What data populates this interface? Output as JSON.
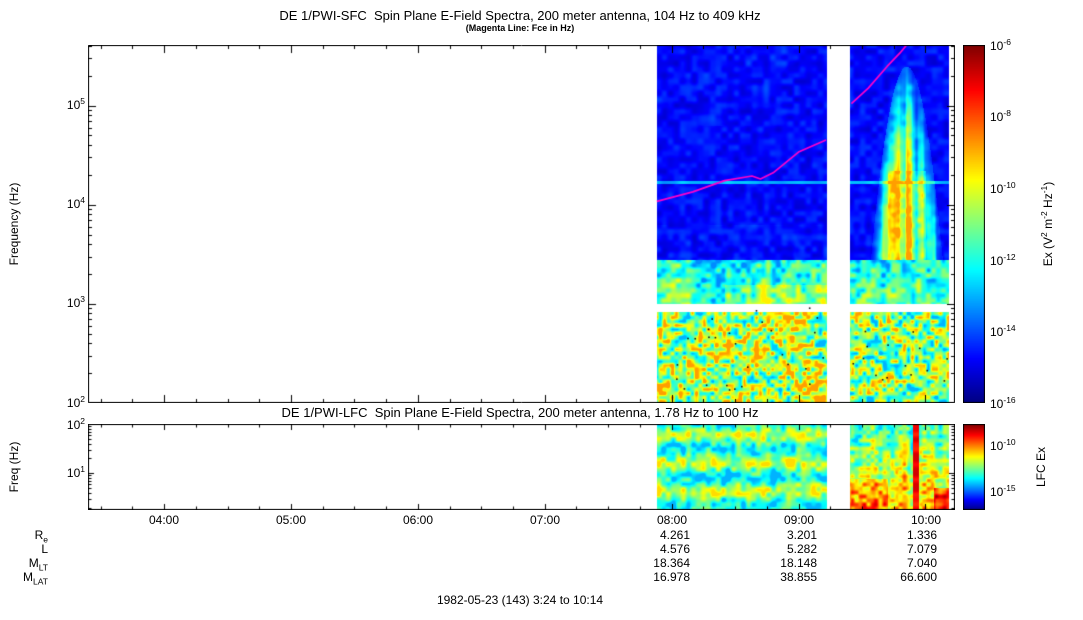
{
  "titles": {
    "sfc_title": "DE 1/PWI-SFC  Spin Plane E-Field Spectra, 200 meter antenna, 104 Hz to 409 kHz",
    "sfc_subtitle": "(Magenta Line: Fce in Hz)",
    "lfc_title": "DE 1/PWI-LFC  Spin Plane E-Field Spectra, 200 meter antenna, 1.78 Hz to 100 Hz"
  },
  "sfc_axis": {
    "ylabel": "Frequency (Hz)",
    "yticks": [
      {
        "base": "10",
        "exp": "5"
      },
      {
        "base": "10",
        "exp": "4"
      },
      {
        "base": "10",
        "exp": "3"
      },
      {
        "base": "10",
        "exp": "2"
      }
    ],
    "cbar_ticks": [
      {
        "base": "10",
        "exp": "-6"
      },
      {
        "base": "10",
        "exp": "-8"
      },
      {
        "base": "10",
        "exp": "-10"
      },
      {
        "base": "10",
        "exp": "-12"
      },
      {
        "base": "10",
        "exp": "-14"
      },
      {
        "base": "10",
        "exp": "-16"
      }
    ],
    "cbar_label_parts": {
      "p1": "Ex (V",
      "s1": "2",
      "p2": " m",
      "s2": "-2",
      "p3": " Hz",
      "s3": "-1",
      "p4": ")"
    }
  },
  "lfc_axis": {
    "ylabel": "Freq (Hz)",
    "yticks": [
      {
        "base": "10",
        "exp": "2"
      },
      {
        "base": "10",
        "exp": "1"
      }
    ],
    "cbar_ticks": [
      {
        "base": "10",
        "exp": "-10"
      },
      {
        "base": "10",
        "exp": "-15"
      }
    ],
    "cbar_label": "LFC Ex"
  },
  "xticks": [
    "04:00",
    "05:00",
    "06:00",
    "07:00",
    "08:00",
    "09:00",
    "10:00"
  ],
  "ephemeris": {
    "rows": [
      {
        "base": "R",
        "sub": "e",
        "values": [
          "4.261",
          "3.201",
          "1.336"
        ]
      },
      {
        "base": "L",
        "sub": "",
        "values": [
          "4.576",
          "5.282",
          "7.079"
        ]
      },
      {
        "base": "M",
        "sub": "LT",
        "values": [
          "18.364",
          "18.148",
          "7.040"
        ]
      },
      {
        "base": "M",
        "sub": "LAT",
        "values": [
          "16.978",
          "38.855",
          "66.600"
        ]
      }
    ]
  },
  "footer": "1982-05-23 (143) 3:24 to 10:14",
  "chart_data": [
    {
      "type": "heatmap",
      "name": "SFC spectrogram",
      "title": "DE 1/PWI-SFC  Spin Plane E-Field Spectra, 200 meter antenna, 104 Hz to 409 kHz",
      "subtitle": "(Magenta Line: Fce in Hz)",
      "ylabel": "Frequency (Hz)",
      "x_range": [
        "03:24",
        "10:14"
      ],
      "x_ticks": [
        "04:00",
        "05:00",
        "06:00",
        "07:00",
        "08:00",
        "09:00",
        "10:00"
      ],
      "y_scale": "log",
      "y_range_hz": [
        100,
        409000
      ],
      "y_ticks_hz": [
        100,
        1000,
        10000,
        100000
      ],
      "colorbar": {
        "label": "Ex (V^2 m^-2 Hz^-1)",
        "scale": "log",
        "range": [
          1e-16,
          1e-06
        ],
        "ticks": [
          1e-06,
          1e-08,
          1e-10,
          1e-12,
          1e-14,
          1e-16
        ],
        "palette": "rainbow",
        "position": "right"
      },
      "data_coverage": [
        {
          "start": "07:53",
          "end": "09:13"
        },
        {
          "start": "09:24",
          "end": "10:11"
        }
      ],
      "gap_band_hz": [
        830,
        1000
      ],
      "interference_line_hz": 17000,
      "fce_line": {
        "name": "Fce",
        "color": "#ff00cc",
        "points": [
          [
            "07:53",
            10800
          ],
          [
            "08:10",
            13500
          ],
          [
            "08:25",
            17500
          ],
          [
            "08:38",
            19500
          ],
          [
            "08:42",
            18200
          ],
          [
            "08:48",
            21000
          ],
          [
            "09:00",
            34000
          ],
          [
            "09:13",
            45000
          ],
          [
            "09:25",
            105000
          ],
          [
            "09:33",
            150000
          ],
          [
            "09:42",
            250000
          ],
          [
            "09:48",
            340000
          ],
          [
            "09:52",
            430000
          ]
        ]
      },
      "features": [
        "No data (white) before 07:53 and during 09:13-09:24 gap",
        "Broadband mottled green-yellow emission 100-830 Hz throughout data interval",
        "White instrument gap band near 1 kHz",
        "Green-cyan band 1-3 kHz",
        "Blue low-intensity background above 3 kHz with faint cyan interference line near 17 kHz",
        "Intense cyan-green auroral hiss funnel 09:35-10:05 extending from 1 kHz up to about 200 kHz",
        "Scattered dark speckles in the low-frequency band"
      ]
    },
    {
      "type": "heatmap",
      "name": "LFC spectrogram",
      "title": "DE 1/PWI-LFC  Spin Plane E-Field Spectra, 200 meter antenna, 1.78 Hz to 100 Hz",
      "ylabel": "Freq (Hz)",
      "x_range": [
        "03:24",
        "10:14"
      ],
      "y_scale": "log",
      "y_range_hz": [
        1.78,
        100
      ],
      "y_ticks_hz": [
        10,
        100
      ],
      "colorbar": {
        "label": "LFC Ex",
        "scale": "log",
        "ticks": [
          1e-10,
          1e-15
        ],
        "palette": "rainbow",
        "position": "right"
      },
      "data_coverage": [
        {
          "start": "07:53",
          "end": "09:13"
        },
        {
          "start": "09:24",
          "end": "10:11"
        }
      ],
      "features": [
        "Horizontally banded green emission with yellow streaks 07:53-09:13",
        "Intense yellow-orange-red broadband burst 09:24-10:11, strongest near bottom",
        "Narrow saturated red column spanning all frequencies near 09:55"
      ]
    }
  ]
}
